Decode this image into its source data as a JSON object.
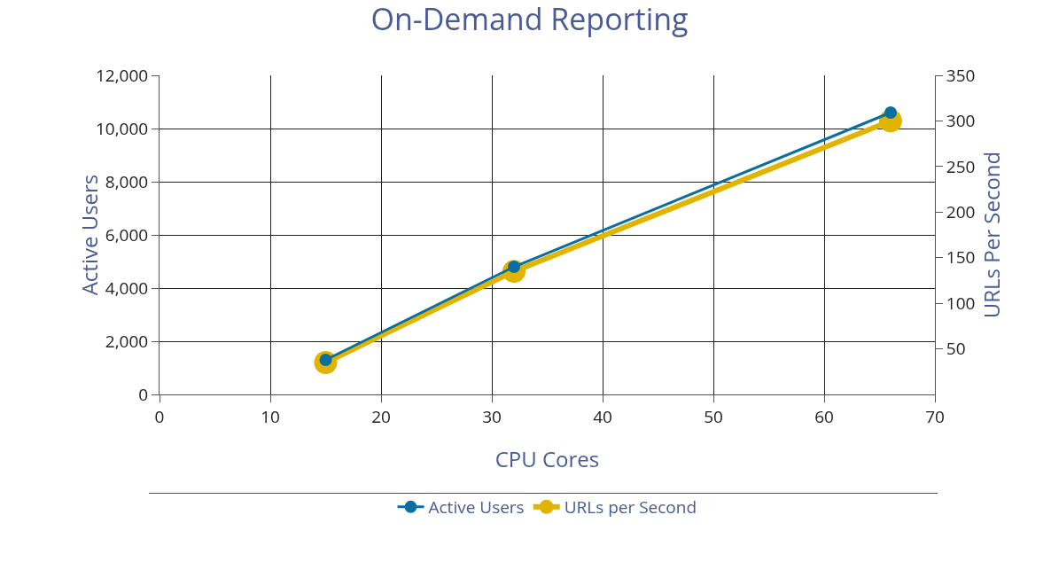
{
  "chart_data": {
    "type": "line",
    "title": "On-Demand Reporting",
    "xlabel": "CPU Cores",
    "ylabel": "Active Users",
    "y2label": "URLs Per Second",
    "x": [
      15,
      32,
      66
    ],
    "series": [
      {
        "name": "URLs per Second",
        "color": "#e0b400",
        "values": [
          35,
          135,
          300
        ],
        "axis": "y2"
      },
      {
        "name": "Active Users",
        "color": "#0a6fa0",
        "values": [
          1300,
          4800,
          10600
        ]
      }
    ],
    "xlim": [
      0,
      70
    ],
    "xticks": [
      0,
      10,
      20,
      30,
      40,
      50,
      60,
      70
    ],
    "ylim": [
      0,
      12000
    ],
    "yticks": [
      {
        "value": 0,
        "label": "0"
      },
      {
        "value": 2000,
        "label": "2,000"
      },
      {
        "value": 4000,
        "label": "4,000"
      },
      {
        "value": 6000,
        "label": "6,000"
      },
      {
        "value": 8000,
        "label": "8,000"
      },
      {
        "value": 10000,
        "label": "10,000"
      },
      {
        "value": 12000,
        "label": "12,000"
      }
    ],
    "y2lim": [
      0,
      350
    ],
    "y2ticks": [
      50,
      100,
      150,
      200,
      250,
      300,
      350
    ],
    "grid": true,
    "legend": "bottom",
    "marker": "circle",
    "line_style": "solid"
  }
}
